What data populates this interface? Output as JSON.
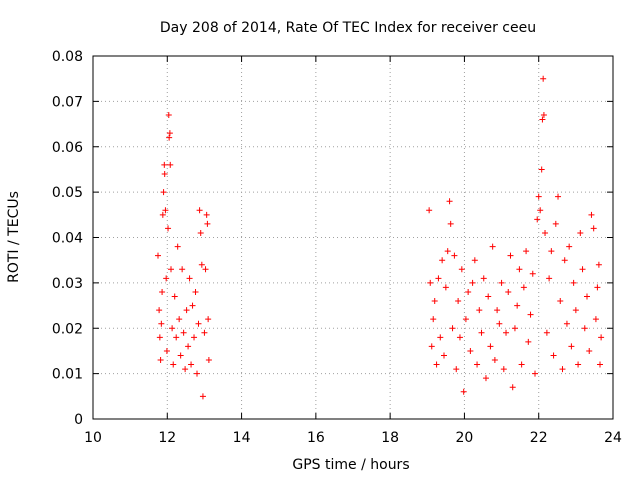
{
  "chart_data": {
    "type": "scatter",
    "title": "Day 208 of 2014, Rate Of TEC Index for receiver ceeu",
    "xlabel": "GPS time / hours",
    "ylabel": "ROTI / TECUs",
    "xlim": [
      10,
      24
    ],
    "ylim": [
      0,
      0.08
    ],
    "xticks": [
      10,
      12,
      14,
      16,
      18,
      20,
      22,
      24
    ],
    "yticks": [
      0,
      0.01,
      0.02,
      0.03,
      0.04,
      0.05,
      0.06,
      0.07,
      0.08
    ],
    "xtick_labels": [
      "10",
      "12",
      "14",
      "16",
      "18",
      "20",
      "22",
      "24"
    ],
    "ytick_labels": [
      "0",
      "0.01",
      "0.02",
      "0.03",
      "0.04",
      "0.05",
      "0.06",
      "0.07",
      "0.08"
    ],
    "grid": true,
    "marker": "+",
    "color": "#ff0000",
    "series": [
      {
        "name": "ROTI",
        "points": [
          [
            11.75,
            0.036
          ],
          [
            11.78,
            0.024
          ],
          [
            11.8,
            0.018
          ],
          [
            11.82,
            0.013
          ],
          [
            11.84,
            0.021
          ],
          [
            11.86,
            0.028
          ],
          [
            11.88,
            0.045
          ],
          [
            11.9,
            0.05
          ],
          [
            11.92,
            0.056
          ],
          [
            11.93,
            0.054
          ],
          [
            11.95,
            0.046
          ],
          [
            11.97,
            0.031
          ],
          [
            11.99,
            0.015
          ],
          [
            12.02,
            0.042
          ],
          [
            12.04,
            0.067
          ],
          [
            12.05,
            0.062
          ],
          [
            12.07,
            0.063
          ],
          [
            12.08,
            0.056
          ],
          [
            12.1,
            0.033
          ],
          [
            12.13,
            0.02
          ],
          [
            12.16,
            0.012
          ],
          [
            12.2,
            0.027
          ],
          [
            12.24,
            0.018
          ],
          [
            12.28,
            0.038
          ],
          [
            12.32,
            0.022
          ],
          [
            12.36,
            0.014
          ],
          [
            12.4,
            0.033
          ],
          [
            12.44,
            0.019
          ],
          [
            12.48,
            0.011
          ],
          [
            12.52,
            0.024
          ],
          [
            12.56,
            0.016
          ],
          [
            12.6,
            0.031
          ],
          [
            12.64,
            0.012
          ],
          [
            12.68,
            0.025
          ],
          [
            12.72,
            0.018
          ],
          [
            12.76,
            0.028
          ],
          [
            12.8,
            0.01
          ],
          [
            12.84,
            0.021
          ],
          [
            12.87,
            0.046
          ],
          [
            12.9,
            0.041
          ],
          [
            12.93,
            0.034
          ],
          [
            12.96,
            0.005
          ],
          [
            13.0,
            0.019
          ],
          [
            13.03,
            0.033
          ],
          [
            13.06,
            0.045
          ],
          [
            13.08,
            0.043
          ],
          [
            13.1,
            0.022
          ],
          [
            13.12,
            0.013
          ],
          [
            19.05,
            0.046
          ],
          [
            19.08,
            0.03
          ],
          [
            19.12,
            0.016
          ],
          [
            19.16,
            0.022
          ],
          [
            19.2,
            0.026
          ],
          [
            19.25,
            0.012
          ],
          [
            19.3,
            0.031
          ],
          [
            19.35,
            0.018
          ],
          [
            19.4,
            0.035
          ],
          [
            19.45,
            0.014
          ],
          [
            19.5,
            0.029
          ],
          [
            19.55,
            0.037
          ],
          [
            19.6,
            0.048
          ],
          [
            19.63,
            0.043
          ],
          [
            19.68,
            0.02
          ],
          [
            19.73,
            0.036
          ],
          [
            19.78,
            0.011
          ],
          [
            19.83,
            0.026
          ],
          [
            19.88,
            0.018
          ],
          [
            19.93,
            0.033
          ],
          [
            19.98,
            0.006
          ],
          [
            20.04,
            0.022
          ],
          [
            20.1,
            0.028
          ],
          [
            20.16,
            0.015
          ],
          [
            20.22,
            0.03
          ],
          [
            20.28,
            0.035
          ],
          [
            20.34,
            0.012
          ],
          [
            20.4,
            0.024
          ],
          [
            20.46,
            0.019
          ],
          [
            20.52,
            0.031
          ],
          [
            20.58,
            0.009
          ],
          [
            20.64,
            0.027
          ],
          [
            20.7,
            0.016
          ],
          [
            20.76,
            0.038
          ],
          [
            20.82,
            0.013
          ],
          [
            20.88,
            0.024
          ],
          [
            20.94,
            0.021
          ],
          [
            21.0,
            0.03
          ],
          [
            21.06,
            0.011
          ],
          [
            21.12,
            0.019
          ],
          [
            21.18,
            0.028
          ],
          [
            21.24,
            0.036
          ],
          [
            21.3,
            0.007
          ],
          [
            21.36,
            0.02
          ],
          [
            21.42,
            0.025
          ],
          [
            21.48,
            0.033
          ],
          [
            21.54,
            0.012
          ],
          [
            21.6,
            0.029
          ],
          [
            21.66,
            0.037
          ],
          [
            21.72,
            0.017
          ],
          [
            21.78,
            0.023
          ],
          [
            21.84,
            0.032
          ],
          [
            21.9,
            0.01
          ],
          [
            21.96,
            0.044
          ],
          [
            22.0,
            0.049
          ],
          [
            22.04,
            0.046
          ],
          [
            22.08,
            0.055
          ],
          [
            22.1,
            0.066
          ],
          [
            22.12,
            0.075
          ],
          [
            22.14,
            0.067
          ],
          [
            22.17,
            0.041
          ],
          [
            22.22,
            0.019
          ],
          [
            22.28,
            0.031
          ],
          [
            22.34,
            0.037
          ],
          [
            22.4,
            0.014
          ],
          [
            22.46,
            0.043
          ],
          [
            22.52,
            0.049
          ],
          [
            22.58,
            0.026
          ],
          [
            22.64,
            0.011
          ],
          [
            22.7,
            0.035
          ],
          [
            22.76,
            0.021
          ],
          [
            22.82,
            0.038
          ],
          [
            22.88,
            0.016
          ],
          [
            22.94,
            0.03
          ],
          [
            23.0,
            0.024
          ],
          [
            23.06,
            0.012
          ],
          [
            23.12,
            0.041
          ],
          [
            23.18,
            0.033
          ],
          [
            23.24,
            0.02
          ],
          [
            23.3,
            0.027
          ],
          [
            23.36,
            0.015
          ],
          [
            23.42,
            0.045
          ],
          [
            23.48,
            0.042
          ],
          [
            23.54,
            0.022
          ],
          [
            23.58,
            0.029
          ],
          [
            23.62,
            0.034
          ],
          [
            23.65,
            0.012
          ],
          [
            23.68,
            0.018
          ]
        ]
      }
    ]
  }
}
